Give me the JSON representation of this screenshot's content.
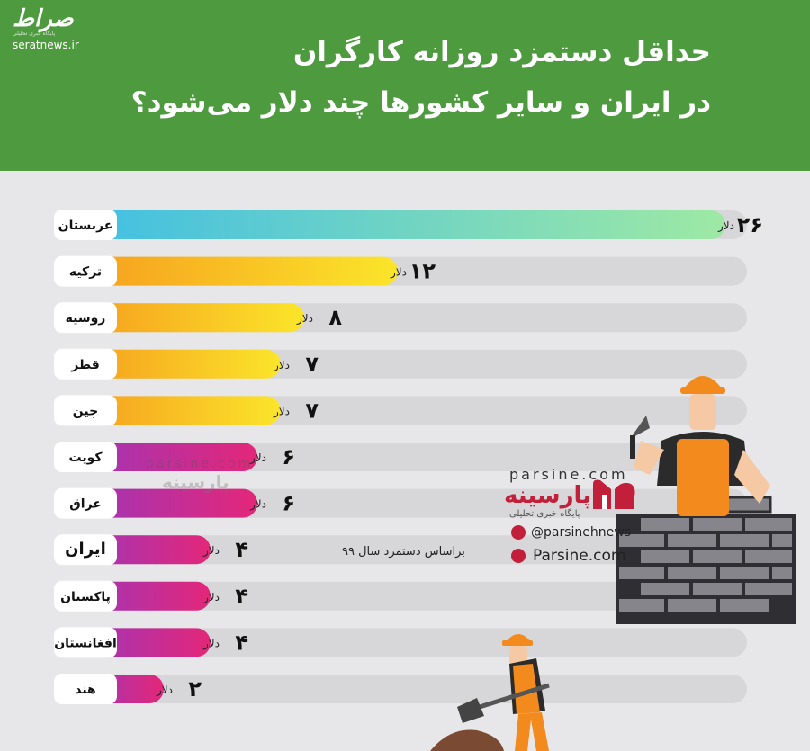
{
  "header": {
    "title_line1": "حداقل دستمزد روزانه کارگران",
    "title_line2": "در ایران و سایر کشورها چند دلار می‌شود؟",
    "logo_text": "صراط",
    "logo_tagline": "پایگاه خبری تحلیلی",
    "logo_site": "seratnews.ir"
  },
  "note": "براساس دستمزد سال ۹۹",
  "branding": {
    "latin": "parsine.com",
    "persian": "پارسینه",
    "subtitle": "پایگاه خبری تحلیلی",
    "telegram": "@parsinehnews",
    "website": "Parsine.com"
  },
  "watermark": {
    "latin": "parsine.com",
    "persian": "پارسینه"
  },
  "colors": {
    "header_bg": "#4d9a3f",
    "page_bg": "#e7e7e9",
    "track": "#d7d7da",
    "label_pill": "#ffffff",
    "brand_red": "#c21f3a"
  },
  "chart_data": {
    "type": "bar",
    "orientation": "horizontal",
    "unit_label": "دلار",
    "xlim": [
      0,
      26
    ],
    "categories": [
      "عربستان",
      "ترکیه",
      "روسیه",
      "قطر",
      "چین",
      "کویت",
      "عراق",
      "ایران",
      "پاکستان",
      "افغانستان",
      "هند"
    ],
    "values": [
      26,
      12,
      8,
      7,
      7,
      6,
      6,
      4,
      4,
      4,
      2
    ],
    "value_labels": [
      "۲۶",
      "۱۲",
      "۸",
      "۷",
      "۷",
      "۶",
      "۶",
      "۴",
      "۴",
      "۴",
      "۲"
    ],
    "bar_colors": [
      [
        "#42bfe3",
        "#9ee9a4"
      ],
      [
        "#f6a01e",
        "#fbe52a"
      ],
      [
        "#f6a01e",
        "#fbe52a"
      ],
      [
        "#f6a01e",
        "#fbe52a"
      ],
      [
        "#f6a01e",
        "#fbe52a"
      ],
      [
        "#a235b5",
        "#e32779"
      ],
      [
        "#a235b5",
        "#e32779"
      ],
      [
        "#a235b5",
        "#e32779"
      ],
      [
        "#a235b5",
        "#e32779"
      ],
      [
        "#a235b5",
        "#e32779"
      ],
      [
        "#a235b5",
        "#e32779"
      ]
    ]
  }
}
